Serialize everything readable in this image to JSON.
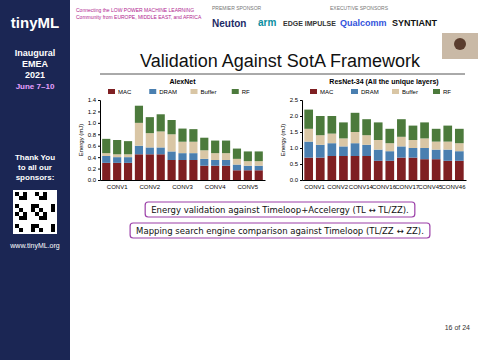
{
  "slide": {
    "title": "Validation Against SotA Framework",
    "notes": [
      "Energy validation against Timeloop+Accelergy (TL ↔ TL/ZZ).",
      "Mapping search engine comparison against Timeloop (TL/ZZ ↔ ZZ)."
    ],
    "page": "16 of 24",
    "banner": {
      "tagline": [
        "Connecting the LOW POWER MACHINE LEARNING",
        "Community from EUROPE, MIDDLE EAST, and AFRICA"
      ],
      "premier": "PREMIER SPONSOR",
      "premier_sponsor": "Neuton",
      "executive": "EXECUTIVE SPONSORS",
      "sponsors": [
        "arm",
        "EDGE IMPULSE",
        "Qualcomm",
        "SYNTIANT"
      ]
    },
    "sidebar": {
      "logo": "tinyML",
      "event": [
        "Inaugural",
        "EMEA",
        "2021",
        "June 7–10"
      ],
      "thanks": [
        "Thank You",
        "to all our",
        "sponsors:"
      ],
      "url": "www.tinyML.org"
    }
  },
  "chart_data": [
    {
      "type": "bar",
      "stacked": true,
      "title": "AlexNet",
      "y_label": "Energy (mJ)",
      "legend": "top",
      "categories": [
        null,
        "CONV1",
        null,
        null,
        "CONV2",
        null,
        null,
        "CONV3",
        null,
        null,
        "CONV4",
        null,
        null,
        "CONV5",
        null
      ],
      "series": [
        {
          "name": "MAC",
          "color": "#7f1f22",
          "values": [
            0.3,
            0.3,
            0.3,
            0.45,
            0.45,
            0.45,
            0.35,
            0.35,
            0.35,
            0.25,
            0.25,
            0.25,
            0.17,
            0.17,
            0.17
          ]
        },
        {
          "name": "DRAM",
          "color": "#4a7fb0",
          "values": [
            0.12,
            0.1,
            0.1,
            0.15,
            0.12,
            0.12,
            0.15,
            0.12,
            0.12,
            0.12,
            0.1,
            0.1,
            0.1,
            0.08,
            0.08
          ]
        },
        {
          "name": "Buffer",
          "color": "#d9c6a5",
          "values": [
            0.05,
            0.05,
            0.05,
            0.4,
            0.25,
            0.28,
            0.3,
            0.2,
            0.2,
            0.15,
            0.12,
            0.12,
            0.1,
            0.08,
            0.08
          ]
        },
        {
          "name": "RF",
          "color": "#4c7a3c",
          "values": [
            0.25,
            0.25,
            0.23,
            0.3,
            0.28,
            0.3,
            0.25,
            0.23,
            0.22,
            0.22,
            0.22,
            0.22,
            0.18,
            0.17,
            0.17
          ]
        }
      ],
      "ylim": [
        0,
        1.4
      ],
      "yticks": [
        {
          "value": 0,
          "label": "0.0"
        },
        0.2,
        0.4,
        0.6,
        0.8,
        {
          "value": 1,
          "label": "1.0"
        },
        1.2,
        1.4
      ]
    },
    {
      "type": "bar",
      "stacked": true,
      "title": "ResNet-34 (All the unique layers)",
      "y_label": "Energy (mJ)",
      "legend": "top",
      "categories": [
        null,
        "CONV1",
        null,
        "CONV2",
        null,
        "CONV14",
        null,
        "CONV16",
        null,
        "CONV17",
        null,
        "CONV45",
        null,
        "CONV46"
      ],
      "series": [
        {
          "name": "MAC",
          "color": "#7f1f22",
          "values": [
            0.7,
            0.7,
            0.75,
            0.75,
            0.75,
            0.75,
            0.6,
            0.6,
            0.7,
            0.7,
            0.65,
            0.65,
            0.6,
            0.6
          ]
        },
        {
          "name": "DRAM",
          "color": "#4a7fb0",
          "values": [
            0.5,
            0.4,
            0.4,
            0.3,
            0.4,
            0.35,
            0.35,
            0.3,
            0.35,
            0.3,
            0.35,
            0.3,
            0.35,
            0.3
          ]
        },
        {
          "name": "Buffer",
          "color": "#d9c6a5",
          "values": [
            0.4,
            0.3,
            0.3,
            0.25,
            0.35,
            0.3,
            0.3,
            0.25,
            0.3,
            0.25,
            0.3,
            0.25,
            0.25,
            0.25
          ]
        },
        {
          "name": "RF",
          "color": "#4c7a3c",
          "values": [
            0.6,
            0.6,
            0.55,
            0.5,
            0.6,
            0.5,
            0.55,
            0.45,
            0.55,
            0.45,
            0.5,
            0.4,
            0.5,
            0.45
          ]
        }
      ],
      "ylim": [
        0,
        2.5
      ],
      "yticks": [
        {
          "value": 0,
          "label": "0.0"
        },
        0.5,
        {
          "value": 1,
          "label": "1.0"
        },
        1.5,
        {
          "value": 2,
          "label": "2.0"
        },
        2.5
      ]
    }
  ]
}
